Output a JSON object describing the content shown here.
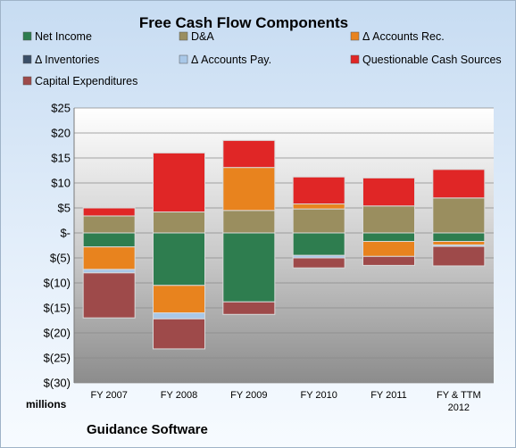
{
  "chart_data": {
    "type": "bar",
    "stacked": true,
    "title": "Free Cash Flow Components",
    "categories": [
      "FY 2007",
      "FY 2008",
      "FY 2009",
      "FY 2010",
      "FY 2011",
      "FY & TTM 2012"
    ],
    "y_ticks": [
      "$25",
      "$20",
      "$15",
      "$10",
      "$5",
      "$-",
      "$(5)",
      "$(10)",
      "$(15)",
      "$(20)",
      "$(25)",
      "$(30)"
    ],
    "ylim": [
      -30,
      25
    ],
    "grid": true,
    "legend_position": "top",
    "units_label": "millions",
    "series": [
      {
        "name": "Net Income",
        "color": "#2e7d4f",
        "values": [
          -2.8,
          -10.5,
          -13.8,
          -4.5,
          -1.7,
          -1.7
        ]
      },
      {
        "name": "D&A",
        "color": "#9a8e5f",
        "values": [
          3.4,
          4.2,
          4.5,
          4.8,
          5.4,
          7.0
        ]
      },
      {
        "name": "Δ Accounts Rec.",
        "color": "#e8831e",
        "values": [
          -4.5,
          -5.5,
          8.6,
          1.0,
          -3.0,
          -0.7
        ]
      },
      {
        "name": "Δ Inventories",
        "color": "#3a4f68",
        "values": [
          0,
          0,
          0,
          0,
          0,
          0
        ]
      },
      {
        "name": "Δ Accounts Pay.",
        "color": "#a9c8e8",
        "values": [
          -0.7,
          -1.2,
          0,
          -0.5,
          0,
          -0.3
        ]
      },
      {
        "name": "Questionable Cash Sources",
        "color": "#e02626",
        "values": [
          1.6,
          11.8,
          5.4,
          5.4,
          5.6,
          5.7
        ]
      },
      {
        "name": "Capital Expenditures",
        "color": "#9e4a4a",
        "values": [
          -9.0,
          -6.0,
          -2.5,
          -2.0,
          -1.8,
          -3.9
        ]
      }
    ]
  },
  "footer": {
    "company": "Guidance Software"
  }
}
